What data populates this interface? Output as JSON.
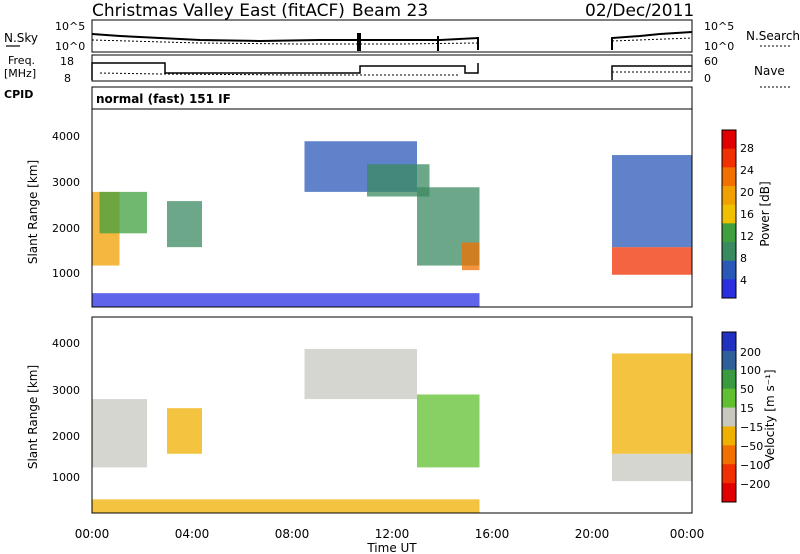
{
  "header": {
    "title": "Christmas Valley East (fitACF)",
    "beam": "Beam 23",
    "date": "02/Dec/2011"
  },
  "status_panels": {
    "nsky_label": "N.Sky",
    "nsky_ticks": [
      "10^5",
      "10^0"
    ],
    "nsearch_label": "N.Search",
    "nsearch_ticks": [
      "10^5",
      "10^0"
    ],
    "freq_label": "Freq.",
    "freq_unit": "[MHz]",
    "freq_ticks": [
      "18",
      "8"
    ],
    "nave_label": "Nave",
    "nave_ticks": [
      "60",
      "0"
    ],
    "cpid_label": "CPID",
    "cpid_value": "normal (fast) 151 IF"
  },
  "colors": {
    "power": [
      "#2a30e0",
      "#2a58b8",
      "#3a8a60",
      "#40a040",
      "#f0c000",
      "#f0a000",
      "#f07000",
      "#f03000",
      "#e00000"
    ],
    "velocity": [
      "#e00000",
      "#f03000",
      "#f07000",
      "#f0b000",
      "#c8c8c0",
      "#60c030",
      "#3a9a40",
      "#30609a",
      "#2030c0"
    ]
  },
  "chart_data": [
    {
      "type": "heatmap",
      "name": "power-panel",
      "ylabel": "Slant Range [km]",
      "yticks": [
        "4000",
        "3000",
        "2000",
        "1000"
      ],
      "ylim": [
        200,
        4500
      ],
      "xlim": [
        0,
        24
      ],
      "colorbar_label": "Power [dB]",
      "colorbar_ticks": [
        "28",
        "24",
        "20",
        "16",
        "12",
        "8",
        "4"
      ],
      "regions": [
        {
          "t0": 0.0,
          "t1": 1.1,
          "r0": 1100,
          "r1": 2700,
          "level": 5
        },
        {
          "t0": 0.3,
          "t1": 2.2,
          "r0": 1800,
          "r1": 2700,
          "level": 3
        },
        {
          "t0": 3.0,
          "t1": 4.4,
          "r0": 1500,
          "r1": 2500,
          "level": 2
        },
        {
          "t0": 8.5,
          "t1": 13.0,
          "r0": 2700,
          "r1": 3800,
          "level": 1
        },
        {
          "t0": 11.0,
          "t1": 13.5,
          "r0": 2600,
          "r1": 3300,
          "level": 2
        },
        {
          "t0": 13.0,
          "t1": 15.5,
          "r0": 1100,
          "r1": 2800,
          "level": 2
        },
        {
          "t0": 14.8,
          "t1": 15.5,
          "r0": 1000,
          "r1": 1600,
          "level": 6
        },
        {
          "t0": 20.8,
          "t1": 24.0,
          "r0": 900,
          "r1": 1500,
          "level": 7
        },
        {
          "t0": 20.8,
          "t1": 24.0,
          "r0": 1500,
          "r1": 3500,
          "level": 1
        },
        {
          "t0": 0.0,
          "t1": 15.5,
          "r0": 200,
          "r1": 500,
          "level": 0
        }
      ]
    },
    {
      "type": "heatmap",
      "name": "velocity-panel",
      "ylabel": "Slant Range [km]",
      "yticks": [
        "4000",
        "3000",
        "2000",
        "1000"
      ],
      "ylim": [
        200,
        4500
      ],
      "xlim": [
        0,
        24
      ],
      "xlabel": "Time UT",
      "xticks": [
        "00:00",
        "04:00",
        "08:00",
        "12:00",
        "16:00",
        "20:00",
        "00:00"
      ],
      "colorbar_label": "Velocity [m s⁻¹]",
      "colorbar_ticks": [
        "200",
        "100",
        "50",
        "15",
        "−15",
        "−50",
        "−100",
        "−200"
      ],
      "regions": [
        {
          "t0": 0.0,
          "t1": 2.2,
          "r0": 1200,
          "r1": 2700,
          "level": 4
        },
        {
          "t0": 3.0,
          "t1": 4.4,
          "r0": 1500,
          "r1": 2500,
          "level": 3
        },
        {
          "t0": 8.5,
          "t1": 13.0,
          "r0": 2700,
          "r1": 3800,
          "level": 4
        },
        {
          "t0": 13.0,
          "t1": 15.5,
          "r0": 1200,
          "r1": 2800,
          "level": 5
        },
        {
          "t0": 20.8,
          "t1": 24.0,
          "r0": 900,
          "r1": 1500,
          "level": 4
        },
        {
          "t0": 20.8,
          "t1": 24.0,
          "r0": 1500,
          "r1": 3700,
          "level": 3
        },
        {
          "t0": 0.0,
          "t1": 15.5,
          "r0": 200,
          "r1": 500,
          "level": 3
        }
      ]
    }
  ]
}
